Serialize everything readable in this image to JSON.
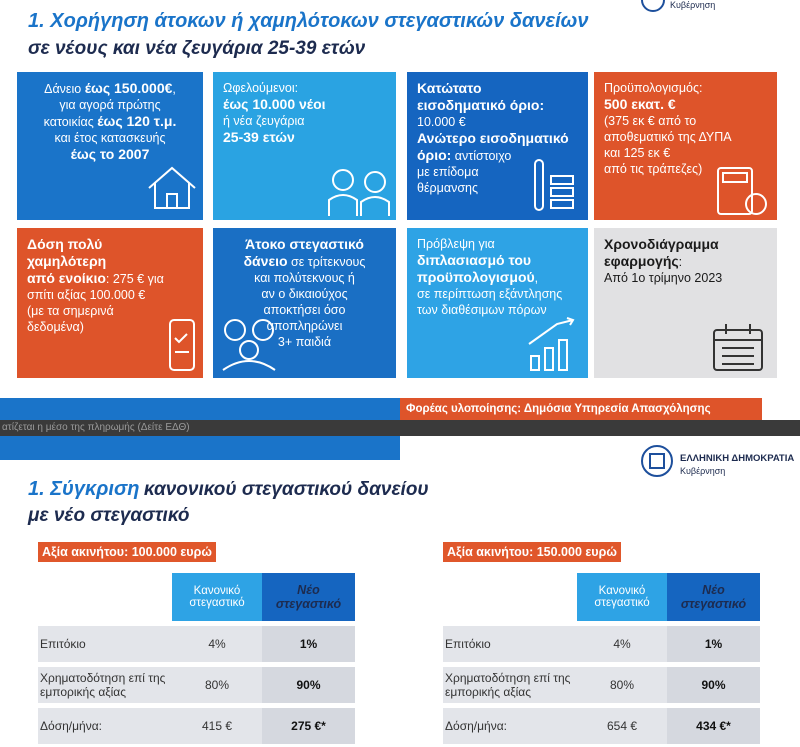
{
  "slide1": {
    "title": "1. Χορήγηση άτοκων ή χαμηλότοκων στεγαστικών δανείων",
    "subtitle": "σε νέους και νέα ζευγάρια 25-39 ετών",
    "logo": "Κυβέρνηση",
    "tiles": [
      {
        "lines": [
          [
            "Δάνειο ",
            {
              "bold": "έως 150.000€"
            },
            ","
          ],
          [
            "για αγορά πρώτης"
          ],
          [
            "κατοικίας ",
            {
              "bold": "έως 120 τ.μ."
            }
          ],
          [
            "και έτος κατασκευής"
          ],
          [
            {
              "bold": "έως το 2007"
            }
          ]
        ]
      },
      {
        "lines": [
          [
            "Ωφελούμενοι:"
          ],
          [
            {
              "bold": "έως 10.000 νέοι"
            }
          ],
          [
            "ή νέα ζευγάρια"
          ],
          [
            {
              "bold": "25-39 ετών"
            }
          ]
        ]
      },
      {
        "lines": [
          [
            {
              "bold": "Κατώτατο"
            }
          ],
          [
            {
              "bold": "εισοδηματικό όριο:"
            }
          ],
          [
            "10.000 €"
          ],
          [
            {
              "bold": "Ανώτερο εισοδηματικό"
            }
          ],
          [
            {
              "bold": "όριο:"
            },
            " αντίστοιχο"
          ],
          [
            "με επίδομα"
          ],
          [
            "θέρμανσης"
          ]
        ]
      },
      {
        "lines": [
          [
            "Προϋπολογισμός:"
          ],
          [
            {
              "bold": "500 εκατ. €"
            }
          ],
          [
            "(375 εκ € από το"
          ],
          [
            "αποθεματικό της ΔΥΠΑ"
          ],
          [
            "και 125 εκ €"
          ],
          [
            "από τις τράπεζες)"
          ]
        ]
      },
      {
        "lines": [
          [
            {
              "bold": "Δόση πολύ"
            }
          ],
          [
            {
              "bold": "χαμηλότερη"
            }
          ],
          [
            {
              "bold": "από ενοίκιο"
            },
            ": 275 € για"
          ],
          [
            "σπίτι αξίας 100.000 €"
          ],
          [
            "(με τα σημερινά"
          ],
          [
            "δεδομένα)"
          ]
        ]
      },
      {
        "lines": [
          [
            {
              "bold": "Άτοκο στεγαστικό"
            }
          ],
          [
            {
              "bold": "δάνειο"
            },
            " σε τρίτεκνους"
          ],
          [
            "και πολύτεκνους ή"
          ],
          [
            "αν ο δικαιούχος"
          ],
          [
            "αποκτήσει όσο"
          ],
          [
            "αποπληρώνει"
          ],
          [
            "3+ παιδιά"
          ]
        ]
      },
      {
        "lines": [
          [
            "Πρόβλεψη για"
          ],
          [
            {
              "bold": "διπλασιασμό του"
            }
          ],
          [
            {
              "bold": "προϋπολογισμού"
            },
            ","
          ],
          [
            "σε περίπτωση εξάντλησης"
          ],
          [
            "των διαθέσιμων πόρων"
          ]
        ]
      },
      {
        "lines": [
          [
            {
              "bold": "Χρονοδιάγραμμα"
            }
          ],
          [
            {
              "bold": "εφαρμογής"
            },
            ":"
          ],
          [
            "Από 1ο τρίμηνο 2023"
          ]
        ]
      }
    ],
    "footer": "Φορέας υλοποίησης: Δημόσια Υπηρεσία Απασχόλησης"
  },
  "caption_strip": "ατίζεται η μέσο της πληρωμής (Δείτε ΕΔΘ)",
  "slide2": {
    "title_number": "1. Σύγκριση",
    "title_rest": "κανονικού στεγαστικού δανείου",
    "subtitle": "με νέο στεγαστικό",
    "logo_title": "ΕΛΛΗΝΙΚΗ ΔΗΜΟΚΡΑΤΙΑ",
    "logo_sub": "Κυβέρνηση",
    "tables": [
      {
        "caption": "Αξία ακινήτου: 100.000 ευρώ",
        "header": [
          "Κανονικό στεγαστικό",
          "Νέο στεγαστικό"
        ],
        "rows": [
          [
            "Επιτόκιο",
            "4%",
            "1%"
          ],
          [
            "Χρηματοδότηση επί της εμπορικής αξίας",
            "80%",
            "90%"
          ],
          [
            "Δόση/μήνα:",
            "415 €",
            "275 €*"
          ]
        ]
      },
      {
        "caption": "Αξία ακινήτου: 150.000 ευρώ",
        "header": [
          "Κανονικό στεγαστικό",
          "Νέο στεγαστικό"
        ],
        "rows": [
          [
            "Επιτόκιο",
            "4%",
            "1%"
          ],
          [
            "Χρηματοδότηση επί της εμπορικής αξίας",
            "80%",
            "90%"
          ],
          [
            "Δόση/μήνα:",
            "654 €",
            "434 €*"
          ]
        ]
      }
    ]
  }
}
